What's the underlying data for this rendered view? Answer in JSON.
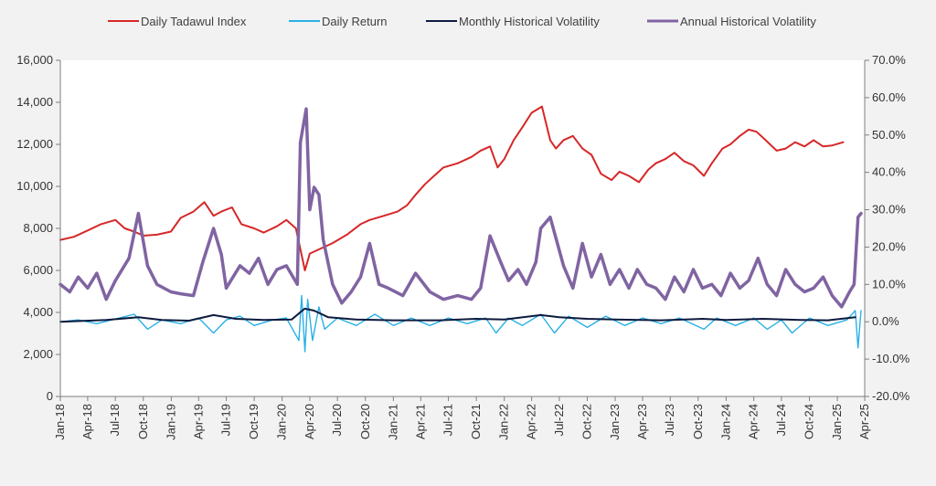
{
  "chart_data": {
    "type": "line",
    "title": "",
    "xlabel": "",
    "ylabel": "",
    "y2label": "",
    "grid": false,
    "legend_position": "top",
    "x_range": [
      "2018-01-01",
      "2025-04-01"
    ],
    "x_tick_labels": [
      "Jan-18",
      "Apr-18",
      "Jul-18",
      "Oct-18",
      "Jan-19",
      "Apr-19",
      "Jul-19",
      "Oct-19",
      "Jan-20",
      "Apr-20",
      "Jul-20",
      "Oct-20",
      "Jan-21",
      "Apr-21",
      "Jul-21",
      "Oct-21",
      "Jan-22",
      "Apr-22",
      "Jul-22",
      "Oct-22",
      "Jan-23",
      "Apr-23",
      "Jul-23",
      "Oct-23",
      "Jan-24",
      "Apr-24",
      "Jul-24",
      "Oct-24",
      "Jan-25",
      "Apr-25"
    ],
    "y_left": {
      "range": [
        0,
        16000
      ],
      "tick_labels": [
        "0",
        "2,000",
        "4,000",
        "6,000",
        "8,000",
        "10,000",
        "12,000",
        "14,000",
        "16,000"
      ]
    },
    "y_right": {
      "range": [
        -0.2,
        0.7
      ],
      "tick_labels": [
        "-20.0%",
        "-10.0%",
        "0.0%",
        "10.0%",
        "20.0%",
        "30.0%",
        "40.0%",
        "50.0%",
        "60.0%",
        "70.0%"
      ]
    },
    "series": [
      {
        "name": "Daily Tadawul Index",
        "color": "#d62728",
        "axis": "left",
        "points": [
          [
            "2018-01-01",
            7450
          ],
          [
            "2018-02-15",
            7600
          ],
          [
            "2018-04-01",
            7900
          ],
          [
            "2018-05-15",
            8200
          ],
          [
            "2018-07-01",
            8400
          ],
          [
            "2018-08-01",
            8000
          ],
          [
            "2018-09-01",
            7850
          ],
          [
            "2018-10-01",
            7650
          ],
          [
            "2018-11-15",
            7700
          ],
          [
            "2018-12-31",
            7850
          ],
          [
            "2019-02-01",
            8500
          ],
          [
            "2019-03-15",
            8800
          ],
          [
            "2019-04-20",
            9250
          ],
          [
            "2019-05-20",
            8600
          ],
          [
            "2019-06-15",
            8800
          ],
          [
            "2019-07-20",
            9000
          ],
          [
            "2019-08-20",
            8200
          ],
          [
            "2019-10-01",
            8000
          ],
          [
            "2019-11-01",
            7800
          ],
          [
            "2019-12-15",
            8100
          ],
          [
            "2020-01-15",
            8400
          ],
          [
            "2020-02-15",
            8000
          ],
          [
            "2020-03-16",
            6000
          ],
          [
            "2020-04-01",
            6800
          ],
          [
            "2020-05-01",
            7000
          ],
          [
            "2020-06-15",
            7300
          ],
          [
            "2020-08-01",
            7700
          ],
          [
            "2020-09-15",
            8200
          ],
          [
            "2020-10-15",
            8400
          ],
          [
            "2020-12-01",
            8600
          ],
          [
            "2021-01-15",
            8800
          ],
          [
            "2021-02-15",
            9100
          ],
          [
            "2021-03-15",
            9600
          ],
          [
            "2021-04-15",
            10100
          ],
          [
            "2021-05-15",
            10500
          ],
          [
            "2021-06-15",
            10900
          ],
          [
            "2021-08-01",
            11100
          ],
          [
            "2021-09-15",
            11400
          ],
          [
            "2021-10-15",
            11700
          ],
          [
            "2021-11-15",
            11900
          ],
          [
            "2021-12-10",
            10900
          ],
          [
            "2022-01-01",
            11300
          ],
          [
            "2022-02-01",
            12200
          ],
          [
            "2022-03-01",
            12800
          ],
          [
            "2022-04-01",
            13500
          ],
          [
            "2022-05-05",
            13800
          ],
          [
            "2022-06-01",
            12200
          ],
          [
            "2022-06-20",
            11800
          ],
          [
            "2022-07-15",
            12200
          ],
          [
            "2022-08-15",
            12400
          ],
          [
            "2022-09-15",
            11800
          ],
          [
            "2022-10-15",
            11500
          ],
          [
            "2022-11-15",
            10600
          ],
          [
            "2022-12-20",
            10300
          ],
          [
            "2023-01-15",
            10700
          ],
          [
            "2023-02-15",
            10500
          ],
          [
            "2023-03-20",
            10200
          ],
          [
            "2023-04-20",
            10800
          ],
          [
            "2023-05-15",
            11100
          ],
          [
            "2023-06-15",
            11300
          ],
          [
            "2023-07-15",
            11600
          ],
          [
            "2023-08-15",
            11200
          ],
          [
            "2023-09-15",
            11000
          ],
          [
            "2023-10-20",
            10500
          ],
          [
            "2023-11-15",
            11100
          ],
          [
            "2023-12-20",
            11800
          ],
          [
            "2024-01-15",
            12000
          ],
          [
            "2024-02-15",
            12400
          ],
          [
            "2024-03-15",
            12700
          ],
          [
            "2024-04-10",
            12600
          ],
          [
            "2024-05-10",
            12200
          ],
          [
            "2024-06-15",
            11700
          ],
          [
            "2024-07-15",
            11800
          ],
          [
            "2024-08-15",
            12100
          ],
          [
            "2024-09-15",
            11900
          ],
          [
            "2024-10-15",
            12200
          ],
          [
            "2024-11-15",
            11900
          ],
          [
            "2024-12-15",
            11950
          ],
          [
            "2025-01-20",
            12100
          ]
        ]
      },
      {
        "name": "Daily Return",
        "color": "#29b0e6",
        "axis": "right",
        "points": [
          [
            "2018-01-01",
            0.0
          ],
          [
            "2018-03-01",
            0.005
          ],
          [
            "2018-05-01",
            -0.005
          ],
          [
            "2018-07-15",
            0.01
          ],
          [
            "2018-09-01",
            0.02
          ],
          [
            "2018-10-15",
            -0.02
          ],
          [
            "2018-12-01",
            0.005
          ],
          [
            "2019-02-01",
            -0.005
          ],
          [
            "2019-04-01",
            0.01
          ],
          [
            "2019-05-20",
            -0.03
          ],
          [
            "2019-07-01",
            0.005
          ],
          [
            "2019-08-15",
            0.015
          ],
          [
            "2019-10-01",
            -0.01
          ],
          [
            "2019-12-01",
            0.005
          ],
          [
            "2020-01-15",
            0.01
          ],
          [
            "2020-02-25",
            -0.05
          ],
          [
            "2020-03-05",
            0.07
          ],
          [
            "2020-03-16",
            -0.08
          ],
          [
            "2020-03-25",
            0.06
          ],
          [
            "2020-04-10",
            -0.05
          ],
          [
            "2020-05-01",
            0.04
          ],
          [
            "2020-05-20",
            -0.02
          ],
          [
            "2020-07-01",
            0.01
          ],
          [
            "2020-09-01",
            -0.01
          ],
          [
            "2020-11-01",
            0.02
          ],
          [
            "2021-01-01",
            -0.01
          ],
          [
            "2021-03-01",
            0.01
          ],
          [
            "2021-05-01",
            -0.01
          ],
          [
            "2021-07-01",
            0.01
          ],
          [
            "2021-09-01",
            -0.005
          ],
          [
            "2021-11-01",
            0.01
          ],
          [
            "2021-12-05",
            -0.03
          ],
          [
            "2022-01-15",
            0.01
          ],
          [
            "2022-03-01",
            -0.01
          ],
          [
            "2022-05-01",
            0.02
          ],
          [
            "2022-06-15",
            -0.03
          ],
          [
            "2022-08-01",
            0.015
          ],
          [
            "2022-10-01",
            -0.015
          ],
          [
            "2022-12-01",
            0.015
          ],
          [
            "2023-02-01",
            -0.01
          ],
          [
            "2023-04-01",
            0.01
          ],
          [
            "2023-06-01",
            -0.005
          ],
          [
            "2023-08-01",
            0.01
          ],
          [
            "2023-10-20",
            -0.02
          ],
          [
            "2023-12-01",
            0.01
          ],
          [
            "2024-02-01",
            -0.01
          ],
          [
            "2024-04-01",
            0.01
          ],
          [
            "2024-05-15",
            -0.02
          ],
          [
            "2024-07-01",
            0.005
          ],
          [
            "2024-08-05",
            -0.03
          ],
          [
            "2024-10-01",
            0.01
          ],
          [
            "2024-12-01",
            -0.01
          ],
          [
            "2025-02-01",
            0.005
          ],
          [
            "2025-03-01",
            0.03
          ],
          [
            "2025-03-10",
            -0.07
          ],
          [
            "2025-03-20",
            0.03
          ]
        ]
      },
      {
        "name": "Monthly Historical Volatility",
        "color": "#0d1b3e",
        "axis": "right",
        "points": [
          [
            "2018-01-01",
            0.0
          ],
          [
            "2018-06-01",
            0.005
          ],
          [
            "2018-09-15",
            0.012
          ],
          [
            "2018-12-01",
            0.005
          ],
          [
            "2019-03-01",
            0.003
          ],
          [
            "2019-05-20",
            0.018
          ],
          [
            "2019-08-01",
            0.008
          ],
          [
            "2019-11-01",
            0.005
          ],
          [
            "2020-02-01",
            0.006
          ],
          [
            "2020-03-15",
            0.035
          ],
          [
            "2020-04-15",
            0.03
          ],
          [
            "2020-06-01",
            0.012
          ],
          [
            "2020-09-01",
            0.006
          ],
          [
            "2021-01-01",
            0.004
          ],
          [
            "2021-06-01",
            0.004
          ],
          [
            "2021-10-01",
            0.008
          ],
          [
            "2022-01-01",
            0.006
          ],
          [
            "2022-05-01",
            0.018
          ],
          [
            "2022-07-01",
            0.012
          ],
          [
            "2022-10-01",
            0.008
          ],
          [
            "2023-01-01",
            0.006
          ],
          [
            "2023-06-01",
            0.004
          ],
          [
            "2023-10-15",
            0.008
          ],
          [
            "2024-01-01",
            0.005
          ],
          [
            "2024-05-01",
            0.008
          ],
          [
            "2024-09-01",
            0.005
          ],
          [
            "2024-12-01",
            0.004
          ],
          [
            "2025-03-01",
            0.012
          ]
        ]
      },
      {
        "name": "Annual Historical Volatility",
        "color": "#8064a2",
        "axis": "right",
        "points": [
          [
            "2018-01-01",
            0.1
          ],
          [
            "2018-02-01",
            0.08
          ],
          [
            "2018-03-01",
            0.12
          ],
          [
            "2018-04-01",
            0.09
          ],
          [
            "2018-05-01",
            0.13
          ],
          [
            "2018-06-01",
            0.06
          ],
          [
            "2018-07-01",
            0.11
          ],
          [
            "2018-08-15",
            0.17
          ],
          [
            "2018-09-15",
            0.29
          ],
          [
            "2018-10-15",
            0.15
          ],
          [
            "2018-11-15",
            0.1
          ],
          [
            "2018-12-31",
            0.08
          ],
          [
            "2019-02-01",
            0.075
          ],
          [
            "2019-03-15",
            0.07
          ],
          [
            "2019-04-15",
            0.16
          ],
          [
            "2019-05-20",
            0.25
          ],
          [
            "2019-06-15",
            0.18
          ],
          [
            "2019-07-01",
            0.09
          ],
          [
            "2019-08-15",
            0.15
          ],
          [
            "2019-09-15",
            0.13
          ],
          [
            "2019-10-15",
            0.17
          ],
          [
            "2019-11-15",
            0.1
          ],
          [
            "2019-12-15",
            0.14
          ],
          [
            "2020-01-15",
            0.15
          ],
          [
            "2020-02-20",
            0.1
          ],
          [
            "2020-03-01",
            0.48
          ],
          [
            "2020-03-20",
            0.57
          ],
          [
            "2020-04-01",
            0.3
          ],
          [
            "2020-04-15",
            0.36
          ],
          [
            "2020-05-01",
            0.34
          ],
          [
            "2020-05-15",
            0.22
          ],
          [
            "2020-06-15",
            0.1
          ],
          [
            "2020-07-15",
            0.05
          ],
          [
            "2020-08-15",
            0.08
          ],
          [
            "2020-09-15",
            0.12
          ],
          [
            "2020-10-15",
            0.21
          ],
          [
            "2020-11-15",
            0.1
          ],
          [
            "2020-12-15",
            0.09
          ],
          [
            "2021-02-01",
            0.07
          ],
          [
            "2021-03-15",
            0.13
          ],
          [
            "2021-05-01",
            0.08
          ],
          [
            "2021-06-15",
            0.06
          ],
          [
            "2021-08-01",
            0.07
          ],
          [
            "2021-09-15",
            0.06
          ],
          [
            "2021-10-15",
            0.09
          ],
          [
            "2021-11-15",
            0.23
          ],
          [
            "2021-12-20",
            0.16
          ],
          [
            "2022-01-15",
            0.11
          ],
          [
            "2022-02-15",
            0.14
          ],
          [
            "2022-03-15",
            0.1
          ],
          [
            "2022-04-15",
            0.16
          ],
          [
            "2022-05-01",
            0.25
          ],
          [
            "2022-06-01",
            0.28
          ],
          [
            "2022-07-15",
            0.15
          ],
          [
            "2022-08-15",
            0.09
          ],
          [
            "2022-09-15",
            0.21
          ],
          [
            "2022-10-15",
            0.12
          ],
          [
            "2022-11-15",
            0.18
          ],
          [
            "2022-12-15",
            0.1
          ],
          [
            "2023-01-15",
            0.14
          ],
          [
            "2023-02-15",
            0.09
          ],
          [
            "2023-03-15",
            0.14
          ],
          [
            "2023-04-15",
            0.1
          ],
          [
            "2023-05-15",
            0.09
          ],
          [
            "2023-06-15",
            0.06
          ],
          [
            "2023-07-15",
            0.12
          ],
          [
            "2023-08-15",
            0.08
          ],
          [
            "2023-09-15",
            0.14
          ],
          [
            "2023-10-15",
            0.09
          ],
          [
            "2023-11-15",
            0.1
          ],
          [
            "2023-12-15",
            0.07
          ],
          [
            "2024-01-15",
            0.13
          ],
          [
            "2024-02-15",
            0.09
          ],
          [
            "2024-03-15",
            0.11
          ],
          [
            "2024-04-15",
            0.17
          ],
          [
            "2024-05-15",
            0.1
          ],
          [
            "2024-06-15",
            0.07
          ],
          [
            "2024-07-15",
            0.14
          ],
          [
            "2024-08-15",
            0.1
          ],
          [
            "2024-09-15",
            0.08
          ],
          [
            "2024-10-15",
            0.09
          ],
          [
            "2024-11-15",
            0.12
          ],
          [
            "2024-12-15",
            0.07
          ],
          [
            "2025-01-15",
            0.04
          ],
          [
            "2025-02-10",
            0.08
          ],
          [
            "2025-02-25",
            0.1
          ],
          [
            "2025-03-10",
            0.28
          ],
          [
            "2025-03-20",
            0.29
          ]
        ]
      }
    ]
  }
}
